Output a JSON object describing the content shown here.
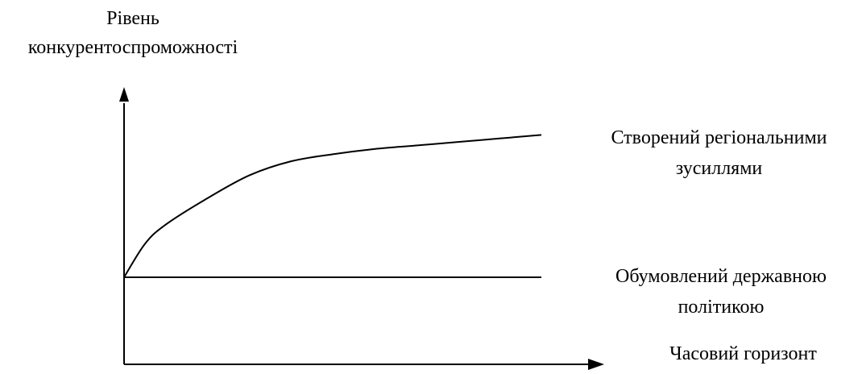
{
  "chart_data": {
    "type": "line",
    "ylabel": [
      "Рівень",
      "конкурентоспроможності"
    ],
    "xlabel": "Часовий горизонт",
    "series": [
      {
        "name": [
          "Створений регіональними",
          "зусиллями"
        ],
        "shape": "concave-increasing",
        "x": [
          0,
          0.05,
          0.1,
          0.2,
          0.3,
          0.4,
          0.5,
          0.6,
          0.7,
          0.8,
          0.9,
          1.0
        ],
        "y": [
          0,
          0.19,
          0.3,
          0.45,
          0.58,
          0.66,
          0.7,
          0.73,
          0.75,
          0.77,
          0.79,
          0.81
        ]
      },
      {
        "name": [
          "Обумовлений державною",
          "політикою"
        ],
        "shape": "constant",
        "x": [
          0,
          1.0
        ],
        "y": [
          0,
          0
        ]
      }
    ],
    "grid": false,
    "legend": "inline-right",
    "axis_ticks": false,
    "color": "#000000"
  }
}
